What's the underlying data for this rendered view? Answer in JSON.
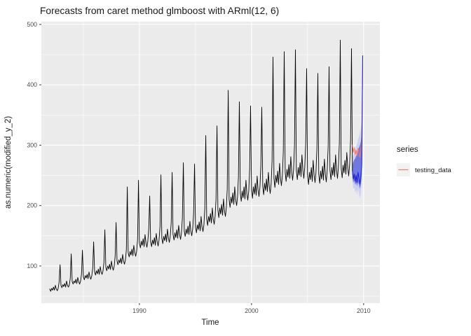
{
  "title": "Forecasts from caret method glmboost with ARml(12,  6)",
  "axes": {
    "x": {
      "label": "Time",
      "tick_labels": [
        "1990",
        "2000",
        "2010"
      ]
    },
    "y": {
      "label": "as.numeric(modified_y_2)",
      "tick_labels": [
        "100",
        "200",
        "300",
        "400",
        "500"
      ]
    }
  },
  "legend": {
    "title": "series",
    "items": [
      {
        "label": "testing_data",
        "color": "#F8766D",
        "key_background": "#F2F2F2"
      }
    ]
  },
  "colors": {
    "panel_background": "#EBEBEB",
    "grid": "#FFFFFF",
    "tick_mark": "#333333",
    "tick_text": "#4D4D4D",
    "history": "#000000",
    "testing": "#F8766D",
    "forecast": "#2222D0",
    "interval_80": "#5963DB",
    "interval_95": "#C9CEF2"
  },
  "chart_data": {
    "type": "line",
    "title": "Forecasts from caret method glmboost with ARml(12,  6)",
    "xlabel": "Time",
    "ylabel": "as.numeric(modified_y_2)",
    "xlim": [
      1981.25,
      2011.45
    ],
    "ylim": [
      38.5,
      504.5
    ],
    "x_ticks": [
      1990,
      2000,
      2010
    ],
    "x_minor_ticks": [
      1985,
      1995,
      2005
    ],
    "y_ticks": [
      100,
      200,
      300,
      400,
      500
    ],
    "y_minor_ticks": [
      50,
      150,
      250,
      350,
      450
    ],
    "grid": true,
    "legend_position": "right",
    "series": [
      {
        "name": "history",
        "role": "observed-data",
        "color": "#000000",
        "width": 0.9,
        "start": 1982.0,
        "step": 0.0833333,
        "values": [
          62,
          58,
          63,
          60,
          65,
          60,
          68,
          62,
          59,
          63,
          73,
          102,
          68,
          64,
          69,
          66,
          71,
          65,
          75,
          68,
          65,
          69,
          80,
          120,
          74,
          70,
          75,
          72,
          78,
          71,
          81,
          74,
          70,
          75,
          87,
          126,
          82,
          77,
          84,
          80,
          86,
          79,
          90,
          82,
          78,
          84,
          97,
          140,
          90,
          85,
          92,
          87,
          95,
          86,
          99,
          90,
          86,
          92,
          106,
          160,
          98,
          92,
          100,
          95,
          103,
          94,
          108,
          98,
          93,
          100,
          116,
          172,
          108,
          102,
          110,
          105,
          113,
          104,
          119,
          108,
          103,
          110,
          127,
          231,
          122,
          115,
          124,
          118,
          128,
          117,
          134,
          122,
          116,
          124,
          144,
          242,
          138,
          130,
          141,
          134,
          145,
          132,
          152,
          138,
          131,
          141,
          163,
          216,
          140,
          132,
          143,
          136,
          147,
          134,
          154,
          140,
          133,
          143,
          165,
          251,
          146,
          137,
          149,
          142,
          153,
          140,
          161,
          146,
          139,
          149,
          172,
          255,
          152,
          143,
          155,
          147,
          160,
          146,
          167,
          152,
          144,
          155,
          179,
          271,
          158,
          149,
          161,
          153,
          166,
          152,
          174,
          158,
          150,
          161,
          186,
          269,
          165,
          155,
          168,
          160,
          173,
          158,
          182,
          165,
          157,
          168,
          195,
          316,
          178,
          167,
          182,
          173,
          187,
          171,
          196,
          178,
          169,
          182,
          210,
          332,
          192,
          180,
          196,
          186,
          202,
          184,
          211,
          192,
          182,
          196,
          227,
          391,
          210,
          197,
          214,
          204,
          221,
          202,
          231,
          210,
          200,
          214,
          248,
          372,
          220,
          207,
          224,
          213,
          231,
          211,
          242,
          220,
          209,
          224,
          260,
          365,
          226,
          212,
          231,
          219,
          237,
          217,
          249,
          226,
          215,
          231,
          267,
          363,
          232,
          218,
          237,
          225,
          244,
          223,
          255,
          232,
          220,
          237,
          274,
          446,
          245,
          230,
          250,
          238,
          257,
          235,
          270,
          245,
          233,
          250,
          289,
          455,
          255,
          240,
          260,
          247,
          268,
          245,
          281,
          255,
          242,
          260,
          301,
          458,
          258,
          243,
          263,
          250,
          271,
          248,
          284,
          258,
          245,
          263,
          304,
          427,
          250,
          235,
          255,
          243,
          263,
          240,
          275,
          250,
          238,
          255,
          295,
          419,
          252,
          237,
          257,
          244,
          265,
          242,
          277,
          252,
          239,
          257,
          297,
          430,
          258,
          243,
          263,
          250,
          271,
          248,
          284,
          258,
          245,
          263,
          304,
          474,
          262,
          246,
          267,
          254,
          275,
          252,
          288,
          262,
          249,
          267,
          309,
          460,
          258
        ]
      },
      {
        "name": "testing_data",
        "role": "actual-test-data",
        "color": "#F8766D",
        "width": 1.0,
        "start": 2009.0,
        "step": 0.0833333,
        "values": [
          300,
          288,
          296,
          285,
          292,
          282,
          295,
          288,
          280,
          290,
          308,
          432
        ]
      },
      {
        "name": "forecast",
        "role": "point-forecast",
        "color": "#2222D0",
        "width": 1.1,
        "start": 2009.0,
        "step": 0.0833333,
        "values": [
          258,
          244,
          252,
          240,
          250,
          238,
          255,
          246,
          236,
          246,
          268,
          448
        ]
      }
    ],
    "bands": [
      {
        "name": "interval-95",
        "color": "#C9CEF2",
        "opacity": 0.85,
        "start": 2009.0,
        "step": 0.0833333,
        "lower": [
          240,
          228,
          230,
          222,
          226,
          218,
          228,
          220,
          212,
          218,
          236,
          408
        ],
        "upper": [
          278,
          284,
          290,
          294,
          298,
          302,
          310,
          314,
          320,
          328,
          338,
          468
        ]
      },
      {
        "name": "interval-80",
        "color": "#5963DB",
        "opacity": 0.8,
        "start": 2009.0,
        "step": 0.0833333,
        "lower": [
          248,
          238,
          242,
          234,
          238,
          232,
          240,
          234,
          228,
          234,
          250,
          424
        ],
        "upper": [
          268,
          272,
          276,
          278,
          282,
          286,
          292,
          296,
          300,
          306,
          318,
          458
        ]
      }
    ]
  }
}
